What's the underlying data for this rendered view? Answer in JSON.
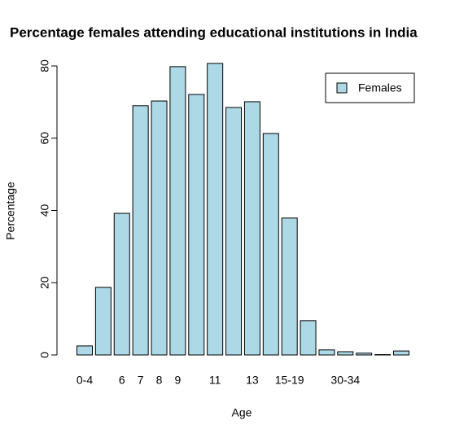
{
  "chart_data": {
    "type": "bar",
    "title": "Percentage females attending educational institutions in India",
    "xlabel": "Age",
    "ylabel": "Percentage",
    "categories": [
      "0-4",
      null,
      "6",
      "7",
      "8",
      "9",
      null,
      "11",
      null,
      "13",
      null,
      "15-19",
      null,
      null,
      "30-34",
      null,
      null,
      null
    ],
    "series": [
      {
        "name": "Females",
        "color": "#add8e6",
        "values": [
          2.5,
          18.7,
          39.2,
          69,
          70.3,
          79.8,
          72.1,
          80.7,
          68.5,
          70.1,
          61.3,
          37.9,
          9.5,
          1.4,
          0.9,
          0.5,
          0.1,
          1.1
        ]
      }
    ],
    "ylim": [
      0,
      80
    ],
    "yticks": [
      0,
      20,
      40,
      60,
      80
    ],
    "legend": "top-right"
  }
}
